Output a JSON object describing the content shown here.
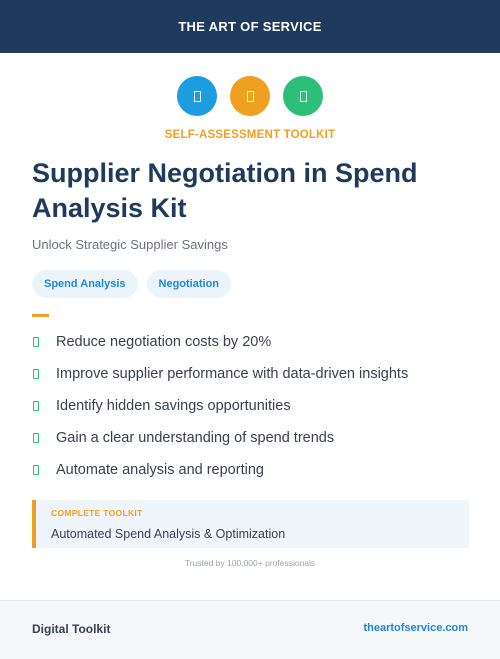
{
  "header": {
    "brand": "THE ART OF SERVICE"
  },
  "icons": [
    {
      "name": "document-icon",
      "color": "#1e9ce0"
    },
    {
      "name": "document-icon",
      "color": "#f0a021"
    },
    {
      "name": "document-icon",
      "color": "#2dbf7a"
    }
  ],
  "kicker": "SELF-ASSESSMENT TOOLKIT",
  "title": "Supplier Negotiation in Spend Analysis Kit",
  "subtitle": "Unlock Strategic Supplier Savings",
  "tags": [
    "Spend Analysis",
    "Negotiation"
  ],
  "benefits": [
    "Reduce negotiation costs by 20%",
    "Improve supplier performance with data-driven insights",
    "Identify hidden savings opportunities",
    "Gain a clear understanding of spend trends",
    "Automate analysis and reporting"
  ],
  "callout": {
    "label": "COMPLETE TOOLKIT",
    "text": "Automated Spend Analysis & Optimization"
  },
  "trusted": "Trusted by 100,000+ professionals",
  "footer": {
    "left": "Digital Toolkit",
    "right": "theartofservice.com"
  },
  "colors": {
    "navy": "#1f3a5c",
    "accent_orange": "#f0a021",
    "accent_blue": "#1e88d6",
    "accent_green": "#2dbf7a"
  }
}
